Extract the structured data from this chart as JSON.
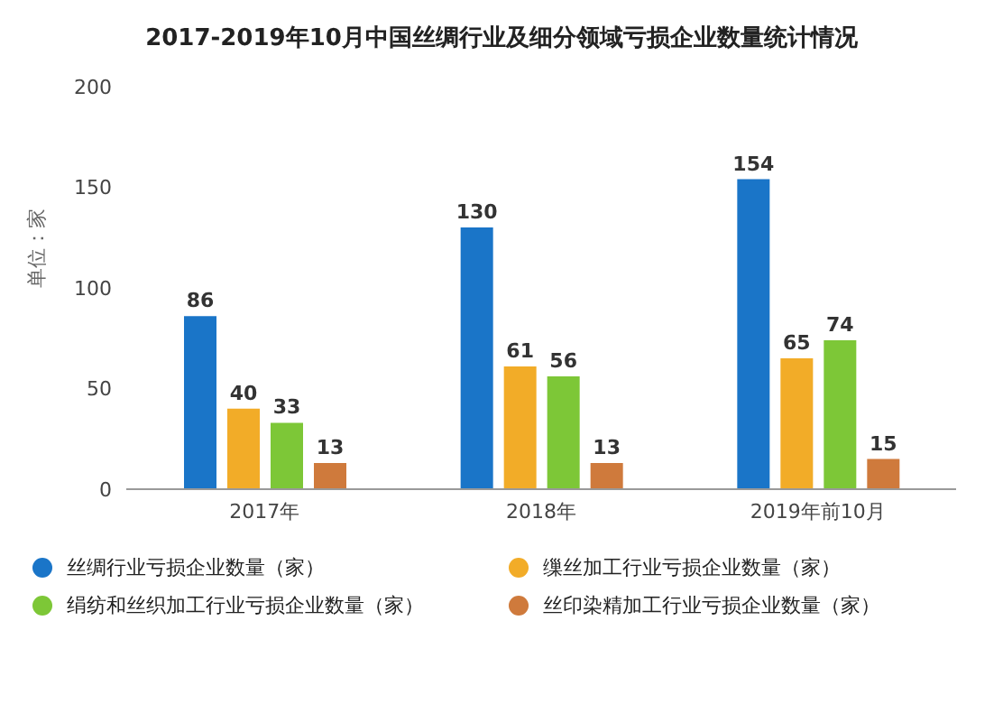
{
  "chart_data": {
    "type": "bar",
    "title": "2017-2019年10月中国丝绸行业及细分领域亏损企业数量统计情况",
    "ylabel": "单位：家",
    "categories": [
      "2017年",
      "2018年",
      "2019年前10月"
    ],
    "series": [
      {
        "name": "丝绸行业亏损企业数量（家）",
        "color": "#1a75c8",
        "values": [
          86,
          130,
          154
        ]
      },
      {
        "name": "缫丝加工行业亏损企业数量（家）",
        "color": "#f2ac28",
        "values": [
          40,
          61,
          65
        ]
      },
      {
        "name": "绢纺和丝织加工行业亏损企业数量（家）",
        "color": "#7dc737",
        "values": [
          33,
          56,
          74
        ]
      },
      {
        "name": "丝印染精加工行业亏损企业数量（家）",
        "color": "#cf7a3c",
        "values": [
          13,
          13,
          15
        ]
      }
    ],
    "ylim": [
      0,
      200
    ],
    "yticks": [
      0,
      50,
      100,
      150,
      200
    ],
    "legend": "bottom",
    "data_labels": true
  }
}
